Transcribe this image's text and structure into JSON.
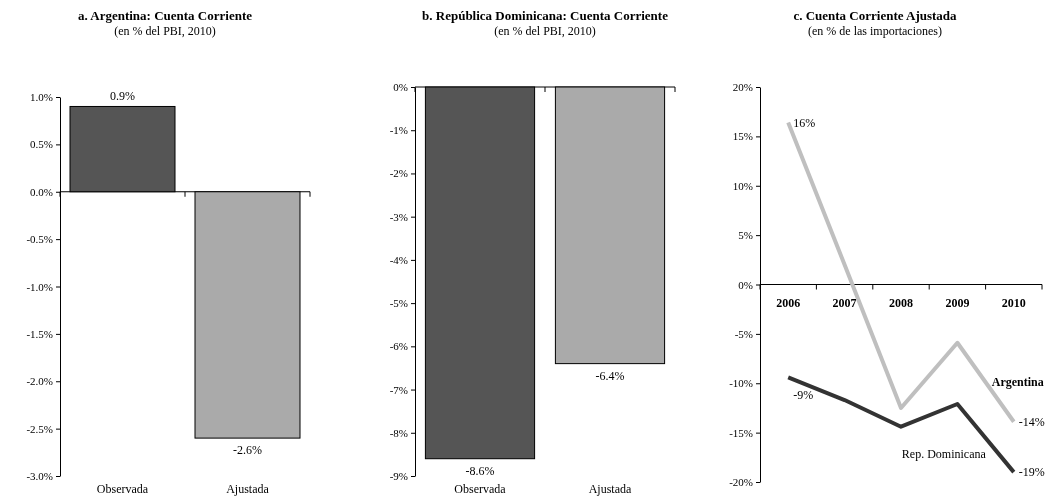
{
  "chart_data": [
    {
      "type": "bar",
      "title": "a. Argentina: Cuenta Corriente",
      "subtitle": "(en % del PBI, 2010)",
      "categories": [
        "Observada",
        "Ajustada"
      ],
      "values": [
        0.9,
        -2.6
      ],
      "value_labels": [
        "0.9%",
        "-2.6%"
      ],
      "colors": [
        "#555555",
        "#aaaaaa"
      ],
      "ylim": [
        -3,
        1
      ],
      "yticks": [
        {
          "value": -3,
          "label": "-3.0%"
        },
        {
          "value": -2.5,
          "label": "-2.5%"
        },
        {
          "value": -2,
          "label": "-2.0%"
        },
        {
          "value": -1.5,
          "label": "-1.5%"
        },
        {
          "value": -1,
          "label": "-1.0%"
        },
        {
          "value": -0.5,
          "label": "-0.5%"
        },
        {
          "value": 0,
          "label": "0.0%"
        },
        {
          "value": 0.5,
          "label": "0.5%"
        },
        {
          "value": 1,
          "label": "1.0%"
        }
      ]
    },
    {
      "type": "bar",
      "title": "b. República Dominicana: Cuenta Corriente",
      "subtitle": "(en % del PBI, 2010)",
      "categories": [
        "Observada",
        "Ajustada"
      ],
      "values": [
        -8.6,
        -6.4
      ],
      "value_labels": [
        "-8.6%",
        "-6.4%"
      ],
      "colors": [
        "#555555",
        "#aaaaaa"
      ],
      "ylim": [
        -9,
        0
      ],
      "yticks": [
        {
          "value": -9,
          "label": "-9%"
        },
        {
          "value": -8,
          "label": "-8%"
        },
        {
          "value": -7,
          "label": "-7%"
        },
        {
          "value": -6,
          "label": "-6%"
        },
        {
          "value": -5,
          "label": "-5%"
        },
        {
          "value": -4,
          "label": "-4%"
        },
        {
          "value": -3,
          "label": "-3%"
        },
        {
          "value": -2,
          "label": "-2%"
        },
        {
          "value": -1,
          "label": "-1%"
        },
        {
          "value": 0,
          "label": "0%"
        }
      ]
    },
    {
      "type": "line",
      "title": "c. Cuenta Corriente Ajustada",
      "subtitle": "(en % de las importaciones)",
      "categories": [
        "2006",
        "2007",
        "2008",
        "2009",
        "2010"
      ],
      "ylim": [
        -20,
        20
      ],
      "yticks": [
        {
          "value": -20,
          "label": "-20%"
        },
        {
          "value": -15,
          "label": "-15%"
        },
        {
          "value": -10,
          "label": "-10%"
        },
        {
          "value": -5,
          "label": "-5%"
        },
        {
          "value": 0,
          "label": "0%"
        },
        {
          "value": 5,
          "label": "5%"
        },
        {
          "value": 10,
          "label": "10%"
        },
        {
          "value": 15,
          "label": "15%"
        },
        {
          "value": 20,
          "label": "20%"
        }
      ],
      "series": [
        {
          "name": "Argentina",
          "color": "#bfbfbf",
          "values": [
            16.4,
            2.0,
            -12.5,
            -5.9,
            -13.9
          ],
          "value_labels": [
            "16%",
            null,
            null,
            null,
            "-14%"
          ]
        },
        {
          "name": "Rep. Dominicana",
          "color": "#333333",
          "values": [
            -9.4,
            -11.7,
            -14.4,
            -12.1,
            -19.0
          ],
          "value_labels": [
            "-9%",
            null,
            null,
            null,
            "-19%"
          ]
        }
      ]
    }
  ]
}
